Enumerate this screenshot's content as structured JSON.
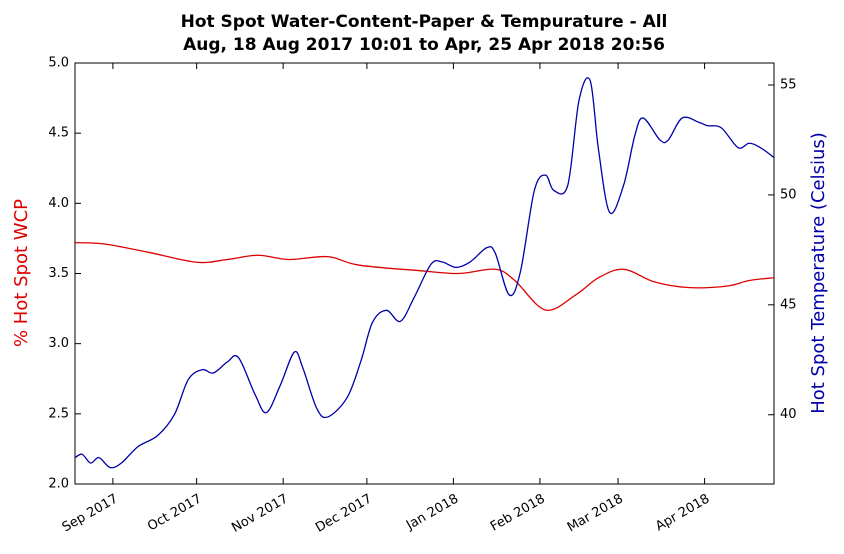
{
  "chart_data": {
    "type": "line",
    "title": "Hot Spot Water-Content-Paper & Tempurature - All",
    "subtitle": "Aug, 18 Aug 2017 10:01 to Apr, 25 Apr 2018 20:56",
    "ylabel": "% Hot Spot WCP",
    "y2label": "Hot Spot Temperature (Celsius)",
    "xlim": [
      "2017-08-18T10:01",
      "2018-04-25T20:56"
    ],
    "xticks": [
      {
        "value": "2017-09-01",
        "label": "Sep 2017"
      },
      {
        "value": "2017-10-01",
        "label": "Oct 2017"
      },
      {
        "value": "2017-11-01",
        "label": "Nov 2017"
      },
      {
        "value": "2017-12-01",
        "label": "Dec 2017"
      },
      {
        "value": "2018-01-01",
        "label": "Jan 2018"
      },
      {
        "value": "2018-02-01",
        "label": "Feb 2018"
      },
      {
        "value": "2018-03-01",
        "label": "Mar 2018"
      },
      {
        "value": "2018-04-01",
        "label": "Apr 2018"
      }
    ],
    "ylim": [
      2.0,
      5.0
    ],
    "yticks": [
      {
        "value": 2,
        "label": "2.0"
      },
      {
        "value": 2.5,
        "label": "2.5"
      },
      {
        "value": 3,
        "label": "3.0"
      },
      {
        "value": 3.5,
        "label": "3.5"
      },
      {
        "value": 4,
        "label": "4.0"
      },
      {
        "value": 4.5,
        "label": "4.5"
      },
      {
        "value": 5,
        "label": "5.0"
      }
    ],
    "y2lim": [
      36.85,
      56.0
    ],
    "y2ticks": [
      40,
      45,
      50,
      55
    ],
    "series": [
      {
        "color": "#dd0000",
        "x": [
          "2017-08-18T10:01",
          "2017-08-29",
          "2017-09-14",
          "2017-10-01",
          "2017-10-12",
          "2017-10-23",
          "2017-11-03",
          "2017-11-17",
          "2017-11-28",
          "2017-12-20",
          "2018-01-03",
          "2018-01-16",
          "2018-01-23",
          "2018-02-03",
          "2018-02-14",
          "2018-02-22",
          "2018-03-03",
          "2018-03-14",
          "2018-03-26",
          "2018-04-09",
          "2018-04-17",
          "2018-04-25T20:56"
        ],
        "values": [
          3.72,
          3.71,
          3.65,
          3.58,
          3.6,
          3.63,
          3.6,
          3.62,
          3.56,
          3.52,
          3.5,
          3.53,
          3.45,
          3.24,
          3.35,
          3.47,
          3.53,
          3.44,
          3.4,
          3.41,
          3.45,
          3.47
        ]
      },
      {
        "color": "#0000aa",
        "axis": "y2",
        "x": [
          "2017-08-18T10:01",
          "2017-08-21",
          "2017-08-24",
          "2017-08-27",
          "2017-08-31",
          "2017-09-04",
          "2017-09-10",
          "2017-09-17",
          "2017-09-23",
          "2017-09-28",
          "2017-10-03",
          "2017-10-07",
          "2017-10-12",
          "2017-10-16",
          "2017-10-22",
          "2017-10-26",
          "2017-10-31",
          "2017-11-05",
          "2017-11-08",
          "2017-11-13",
          "2017-11-17",
          "2017-11-24",
          "2017-11-29",
          "2017-12-03",
          "2017-12-08",
          "2017-12-13",
          "2017-12-18",
          "2017-12-24",
          "2017-12-28",
          "2018-01-02",
          "2018-01-07",
          "2018-01-13",
          "2018-01-16",
          "2018-01-21",
          "2018-01-25",
          "2018-01-30",
          "2018-02-03",
          "2018-02-06",
          "2018-02-11",
          "2018-02-15",
          "2018-02-19",
          "2018-02-22",
          "2018-02-26",
          "2018-03-03",
          "2018-03-07",
          "2018-03-10",
          "2018-03-16",
          "2018-03-19",
          "2018-03-24",
          "2018-03-30",
          "2018-04-02",
          "2018-04-07",
          "2018-04-13",
          "2018-04-17",
          "2018-04-21",
          "2018-04-25T20:56"
        ],
        "values": [
          38.05,
          38.2,
          37.8,
          38.05,
          37.6,
          37.8,
          38.55,
          39.05,
          40,
          41.6,
          42.05,
          41.9,
          42.4,
          42.6,
          40.9,
          40.1,
          41.35,
          42.85,
          42.15,
          40.3,
          39.9,
          40.8,
          42.5,
          44.2,
          44.75,
          44.25,
          45.35,
          46.85,
          46.95,
          46.7,
          46.95,
          47.6,
          47.35,
          45.45,
          46.5,
          50.2,
          50.9,
          50.2,
          50.45,
          54.3,
          55.2,
          52.05,
          49.2,
          50.45,
          52.7,
          53.5,
          52.5,
          52.5,
          53.5,
          53.3,
          53.15,
          53.05,
          52.15,
          52.35,
          52.15,
          51.7
        ]
      }
    ]
  }
}
